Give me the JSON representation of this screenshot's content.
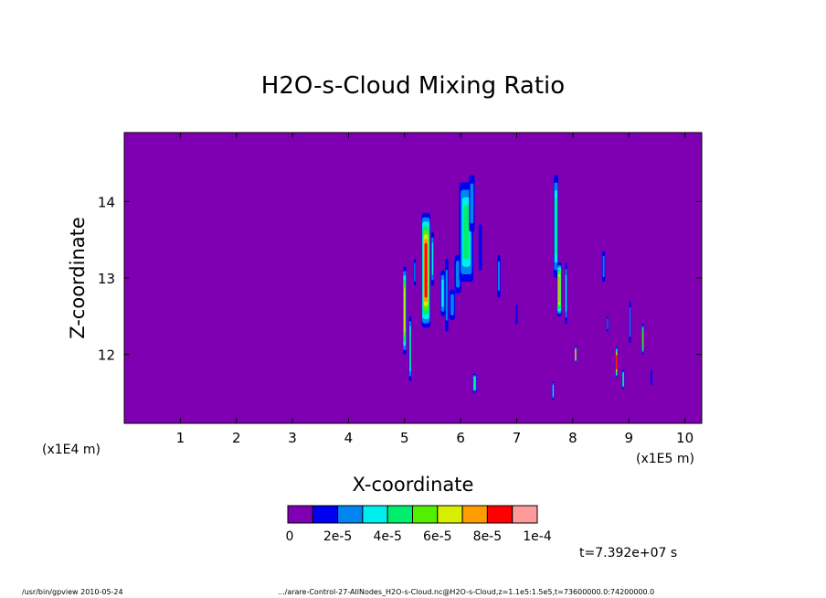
{
  "chart_data": {
    "type": "heatmap",
    "title": "H2O-s-Cloud Mixing Ratio",
    "xlabel": "X-coordinate",
    "ylabel": "Z-coordinate",
    "x_scale_left": "(x1E4 m)",
    "x_scale_right": "(x1E5 m)",
    "xlim": [
      0,
      10.3
    ],
    "ylim": [
      11.1,
      14.9
    ],
    "x_ticks": [
      1,
      2,
      3,
      4,
      5,
      6,
      7,
      8,
      9,
      10
    ],
    "y_ticks": [
      12,
      13,
      14
    ],
    "background_value": 0,
    "background_color": "#7f00b2",
    "colorbar": {
      "colors": [
        "#7f00b2",
        "#0000ee",
        "#0084f0",
        "#00eeee",
        "#00ee6e",
        "#54ee00",
        "#d8ee00",
        "#ff9c00",
        "#ff0000",
        "#ff9a9a"
      ],
      "labels": [
        "0",
        "2e-5",
        "4e-5",
        "6e-5",
        "8e-5",
        "1e-4"
      ]
    },
    "time_label": "t=7.392e+07 s",
    "features": [
      {
        "x": 5.0,
        "z0": 12.0,
        "z1": 13.15,
        "w": 0.06,
        "peak": 6
      },
      {
        "x": 5.1,
        "z0": 11.65,
        "z1": 12.5,
        "w": 0.04,
        "peak": 4
      },
      {
        "x": 5.18,
        "z0": 12.9,
        "z1": 13.25,
        "w": 0.04,
        "peak": 2
      },
      {
        "x": 5.38,
        "z0": 12.35,
        "z1": 13.85,
        "w": 0.16,
        "peak": 8
      },
      {
        "x": 5.5,
        "z0": 12.9,
        "z1": 13.6,
        "w": 0.05,
        "peak": 3
      },
      {
        "x": 5.68,
        "z0": 12.5,
        "z1": 13.1,
        "w": 0.08,
        "peak": 3
      },
      {
        "x": 5.75,
        "z0": 12.3,
        "z1": 13.25,
        "w": 0.06,
        "peak": 2
      },
      {
        "x": 5.85,
        "z0": 12.45,
        "z1": 12.85,
        "w": 0.1,
        "peak": 2
      },
      {
        "x": 5.95,
        "z0": 12.8,
        "z1": 13.3,
        "w": 0.12,
        "peak": 2
      },
      {
        "x": 6.1,
        "z0": 12.95,
        "z1": 14.25,
        "w": 0.25,
        "peak": 4
      },
      {
        "x": 6.2,
        "z0": 13.6,
        "z1": 14.35,
        "w": 0.1,
        "peak": 2
      },
      {
        "x": 6.35,
        "z0": 13.1,
        "z1": 13.7,
        "w": 0.06,
        "peak": 1
      },
      {
        "x": 6.25,
        "z0": 11.5,
        "z1": 11.75,
        "w": 0.07,
        "peak": 4
      },
      {
        "x": 6.68,
        "z0": 12.75,
        "z1": 13.3,
        "w": 0.06,
        "peak": 2
      },
      {
        "x": 7.0,
        "z0": 12.4,
        "z1": 12.65,
        "w": 0.03,
        "peak": 1
      },
      {
        "x": 7.7,
        "z0": 13.0,
        "z1": 14.35,
        "w": 0.08,
        "peak": 4
      },
      {
        "x": 7.76,
        "z0": 12.5,
        "z1": 13.2,
        "w": 0.08,
        "peak": 7
      },
      {
        "x": 7.88,
        "z0": 12.4,
        "z1": 13.2,
        "w": 0.04,
        "peak": 3
      },
      {
        "x": 7.65,
        "z0": 11.4,
        "z1": 11.65,
        "w": 0.03,
        "peak": 3
      },
      {
        "x": 8.05,
        "z0": 11.9,
        "z1": 12.1,
        "w": 0.03,
        "peak": 7
      },
      {
        "x": 8.55,
        "z0": 12.95,
        "z1": 13.35,
        "w": 0.05,
        "peak": 2
      },
      {
        "x": 8.62,
        "z0": 12.3,
        "z1": 12.5,
        "w": 0.03,
        "peak": 2
      },
      {
        "x": 8.78,
        "z0": 11.7,
        "z1": 12.1,
        "w": 0.03,
        "peak": 8
      },
      {
        "x": 8.9,
        "z0": 11.55,
        "z1": 11.8,
        "w": 0.04,
        "peak": 4
      },
      {
        "x": 9.02,
        "z0": 12.15,
        "z1": 12.7,
        "w": 0.03,
        "peak": 2
      },
      {
        "x": 9.25,
        "z0": 12.0,
        "z1": 12.4,
        "w": 0.03,
        "peak": 5
      },
      {
        "x": 9.4,
        "z0": 11.6,
        "z1": 11.8,
        "w": 0.03,
        "peak": 1
      }
    ]
  },
  "footer": {
    "left": "/usr/bin/gpview   2010-05-24",
    "right": ".../arare-Control-27-AllNodes_H2O-s-Cloud.nc@H2O-s-Cloud,z=1.1e5:1.5e5,t=73600000.0:74200000.0"
  }
}
